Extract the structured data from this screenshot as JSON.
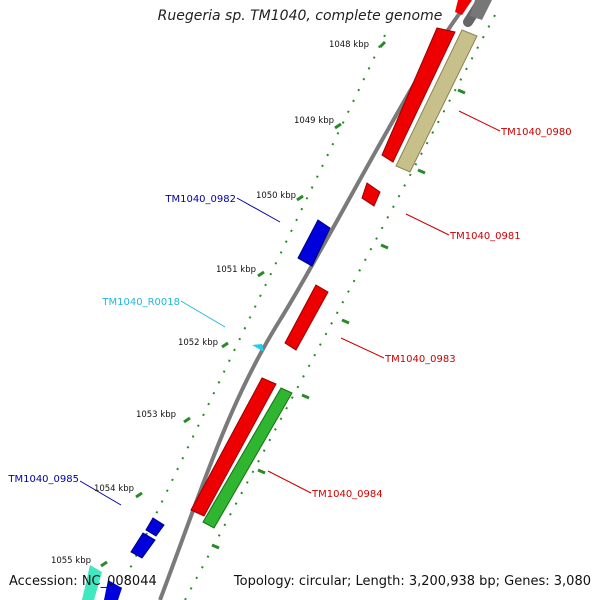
{
  "title": "Ruegeria sp. TM1040, complete genome",
  "accession_text": "Accession: NC_008044",
  "summary_text": "Topology: circular; Length: 3,200,938 bp; Genes: 3,080",
  "colors": {
    "forward_cds": "#ee0000",
    "reverse_cds": "#0000dd",
    "rna": "#22ccee",
    "khaki": "#c8c08a",
    "green": "#2fb52f",
    "teal": "#40e8c0",
    "backbone": "#888888",
    "tick": "#2a8a2a"
  },
  "kbp_labels": [
    "1048 kbp",
    "1049 kbp",
    "1050 kbp",
    "1051 kbp",
    "1052 kbp",
    "1053 kbp",
    "1054 kbp",
    "1055 kbp"
  ],
  "feature_labels": [
    {
      "text": "TM1040_0980",
      "color": "#cc0000"
    },
    {
      "text": "TM1040_0981",
      "color": "#cc0000"
    },
    {
      "text": "TM1040_0982",
      "color": "#0000aa"
    },
    {
      "text": "TM1040_R0018",
      "color": "#22b8d8"
    },
    {
      "text": "TM1040_0983",
      "color": "#cc0000"
    },
    {
      "text": "TM1040_0984",
      "color": "#cc0000"
    },
    {
      "text": "TM1040_0985",
      "color": "#0000aa"
    }
  ]
}
